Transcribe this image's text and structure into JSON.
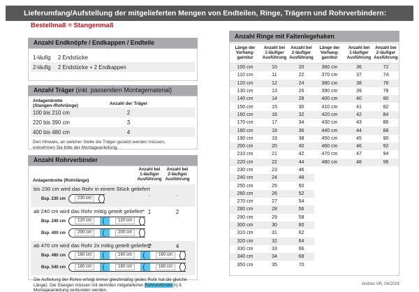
{
  "page": {
    "title": "Lieferumfang/Aufstellung der mitgelieferten Mengen von Endteilen, Ringe, Trägern und Rohrverbindern:",
    "subtitle": "Bestellmaß = Stangenmaß",
    "credit": "Andres VR, 04/2024"
  },
  "colors": {
    "header_bg": "#57585a",
    "section_bg": "#a8aaad",
    "row_alt": "#ededee",
    "accent_red": "#c1121c",
    "accent_blue": "#57c5f0"
  },
  "endteile": {
    "title": "Anzahl Endknöpfe / Endkappen / Endteile",
    "rows": [
      {
        "label": "1-läufig",
        "value": "2 Endstücke"
      },
      {
        "label": "2-läufig",
        "value": "2 Endstücke + 2 Endkappen"
      }
    ]
  },
  "traeger": {
    "title_bold": "Anzahl Träger",
    "title_rest": " (inkl. passendem Montagematerial)",
    "col1": "Anlagenbreite (Stangen-/Rohrlänge)",
    "col2": "Anzahl der Träger",
    "rows": [
      {
        "range": "100 bis 210 cm",
        "count": "2"
      },
      {
        "range": "220 bis 390 cm",
        "count": "3"
      },
      {
        "range": "400 bis 480 cm",
        "count": "4"
      }
    ],
    "note": "Den Hinweis, an welcher Stelle die Träger gesetzt werden müssen, entnehmen Sie bitte der Montageanleitung."
  },
  "rohrverbinder": {
    "title": "Anzahl Rohrverbinder",
    "col1": "Anlagenbreite (Rohrlänge)",
    "col2": "Anzahl bei\n1-läufiger\nAusführung",
    "col3": "Anzahl bei\n2-läufiger\nAusführung",
    "rows": [
      {
        "text": "bis 230 cm wird das Rohr in einem Stück geliefert",
        "val1": "-",
        "val2": "-",
        "examples": [
          {
            "label": "Bsp. 230 cm",
            "segments": [
              "230 cm"
            ]
          }
        ]
      },
      {
        "text": "ab 240 cm wird das Rohr mittig geteilt geliefert*",
        "val1": "1",
        "val2": "2",
        "examples": [
          {
            "label": "Bsp. 240 cm",
            "segments": [
              "120 cm",
              "120 cm"
            ]
          },
          {
            "label": "Bsp. 400 cm",
            "segments": [
              "200 cm",
              "200 cm"
            ]
          }
        ]
      },
      {
        "text": "ab 470 cm wird das Rohr 2x mittig geteilt geliefert*",
        "val1": "2",
        "val2": "4",
        "examples": [
          {
            "label": "Bsp. 480 cm",
            "segments": [
              "160 cm",
              "160 cm",
              "160 cm"
            ]
          },
          {
            "label": "Bsp. 540 cm",
            "segments": [
              "180 cm",
              "180 cm",
              "180 cm"
            ]
          }
        ]
      }
    ],
    "note_pre": "Die Aufteilung der Rohre erfolgt immer gleichmäßig (jedes Rohr hat die gleiche Länge). Die Stangen müssen mit dem/den mitgelieferten ",
    "note_highlight": "Rohrverbinder",
    "note_post": "(n) lt. Montageanleitung verbunden werden."
  },
  "ringe": {
    "title": "Anzahl Ringe mit Faltenlegehaken",
    "col1": "Länge der\nVorhang-\ngarnitur",
    "col2": "Anzahl bei\n1-läufiger\nAusführung",
    "col3": "Anzahl bei\n2-läufiger\nAusführung",
    "left_rows": [
      [
        "100 cm",
        "10",
        "20"
      ],
      [
        "110 cm",
        "11",
        "22"
      ],
      [
        "120 cm",
        "12",
        "24"
      ],
      [
        "130 cm",
        "13",
        "26"
      ],
      [
        "140 cm",
        "14",
        "28"
      ],
      [
        "150 cm",
        "15",
        "30"
      ],
      [
        "160 cm",
        "16",
        "32"
      ],
      [
        "170 cm",
        "17",
        "34"
      ],
      [
        "180 cm",
        "18",
        "36"
      ],
      [
        "190 cm",
        "19",
        "38"
      ],
      [
        "200 cm",
        "20",
        "40"
      ],
      [
        "210 cm",
        "21",
        "42"
      ],
      [
        "220 cm",
        "22",
        "44"
      ],
      [
        "230 cm",
        "23",
        "46"
      ],
      [
        "240 cm",
        "24",
        "48"
      ],
      [
        "250 cm",
        "25",
        "50"
      ],
      [
        "260 cm",
        "26",
        "52"
      ],
      [
        "270 cm",
        "27",
        "54"
      ],
      [
        "280 cm",
        "28",
        "56"
      ],
      [
        "290 cm",
        "29",
        "58"
      ],
      [
        "300 cm",
        "30",
        "60"
      ],
      [
        "310 cm",
        "31",
        "62"
      ],
      [
        "320 cm",
        "32",
        "64"
      ],
      [
        "330 cm",
        "33",
        "66"
      ],
      [
        "340 cm",
        "34",
        "68"
      ],
      [
        "350 cm",
        "35",
        "70"
      ]
    ],
    "right_rows": [
      [
        "360 cm",
        "36",
        "72"
      ],
      [
        "370 cm",
        "37",
        "74"
      ],
      [
        "380 cm",
        "38",
        "76"
      ],
      [
        "390 cm",
        "39",
        "78"
      ],
      [
        "400 cm",
        "40",
        "80"
      ],
      [
        "410 cm",
        "41",
        "82"
      ],
      [
        "420 cm",
        "42",
        "84"
      ],
      [
        "430 cm",
        "43",
        "86"
      ],
      [
        "440 cm",
        "44",
        "88"
      ],
      [
        "450 cm",
        "45",
        "90"
      ],
      [
        "460 cm",
        "46",
        "92"
      ],
      [
        "470 cm",
        "47",
        "94"
      ],
      [
        "480 cm",
        "48",
        "96"
      ]
    ]
  }
}
